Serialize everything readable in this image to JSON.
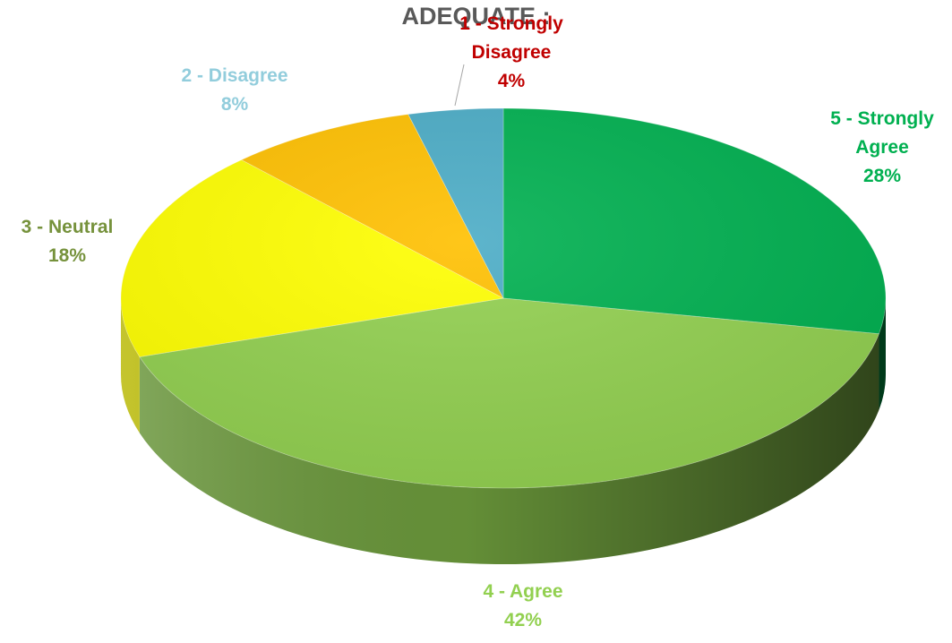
{
  "chart_data": {
    "type": "pie",
    "title": "ADEQUATE :",
    "three_d": true,
    "legend": "none",
    "slices": [
      {
        "category": "5 - Strongly Agree",
        "label_lines": [
          "5 - Strongly",
          "Agree"
        ],
        "value": 28,
        "percent_label": "28%",
        "color": "#00B050",
        "label_color": "#00B050"
      },
      {
        "category": "4 - Agree",
        "label_lines": [
          "4 - Agree"
        ],
        "value": 42,
        "percent_label": "42%",
        "color": "#92D050",
        "label_color": "#92D050"
      },
      {
        "category": "3 - Neutral",
        "label_lines": [
          "3 - Neutral"
        ],
        "value": 18,
        "percent_label": "18%",
        "color": "#FFFF00",
        "label_color": "#76923C"
      },
      {
        "category": "2 - Disagree",
        "label_lines": [
          "2 - Disagree"
        ],
        "value": 8,
        "percent_label": "8%",
        "color": "#FFC000",
        "label_color": "#92CDDC"
      },
      {
        "category": "1 - Strongly Disagree",
        "label_lines": [
          "1 - Strongly",
          "Disagree"
        ],
        "value": 4,
        "percent_label": "4%",
        "color": "#4BACC6",
        "label_color": "#C00000"
      }
    ]
  }
}
